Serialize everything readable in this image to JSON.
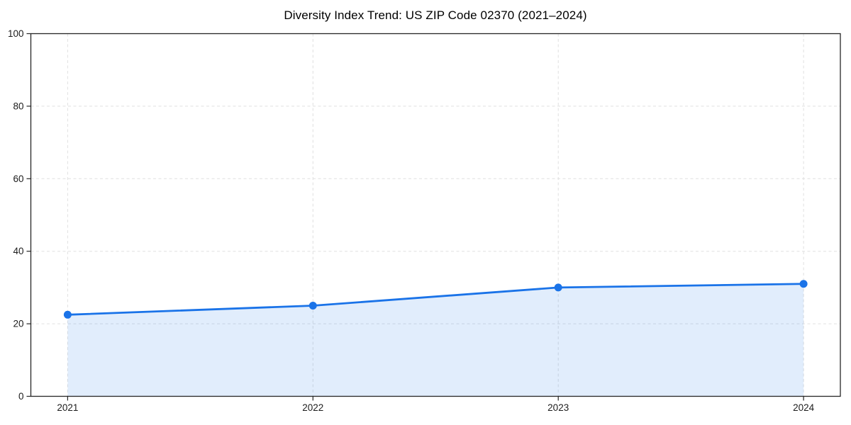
{
  "figure": {
    "background": "#ffffff"
  },
  "chart_data": {
    "type": "line",
    "title": "Diversity Index Trend: US ZIP Code 02370 (2021–2024)",
    "x": [
      2021,
      2022,
      2023,
      2024
    ],
    "categories": [
      "2021",
      "2022",
      "2023",
      "2024"
    ],
    "series": [
      {
        "name": "Diversity Index",
        "values": [
          22.5,
          25,
          30,
          31
        ]
      }
    ],
    "xlabel": "",
    "ylabel": "",
    "xlim": [
      2020.85,
      2024.15
    ],
    "ylim": [
      0,
      100
    ],
    "yticks": [
      0,
      20,
      40,
      60,
      80,
      100
    ],
    "grid": true,
    "grid_style": "dashed",
    "legend_position": "none",
    "area_fill": true,
    "marker": "circle",
    "colors": {
      "line": "#1a73e8",
      "marker": "#1a73e8",
      "area": "rgba(26,115,232,0.13)",
      "grid": "#e0e0e0",
      "axis": "#262626",
      "tick_label": "#1c1c1c",
      "title": "#000000"
    }
  }
}
